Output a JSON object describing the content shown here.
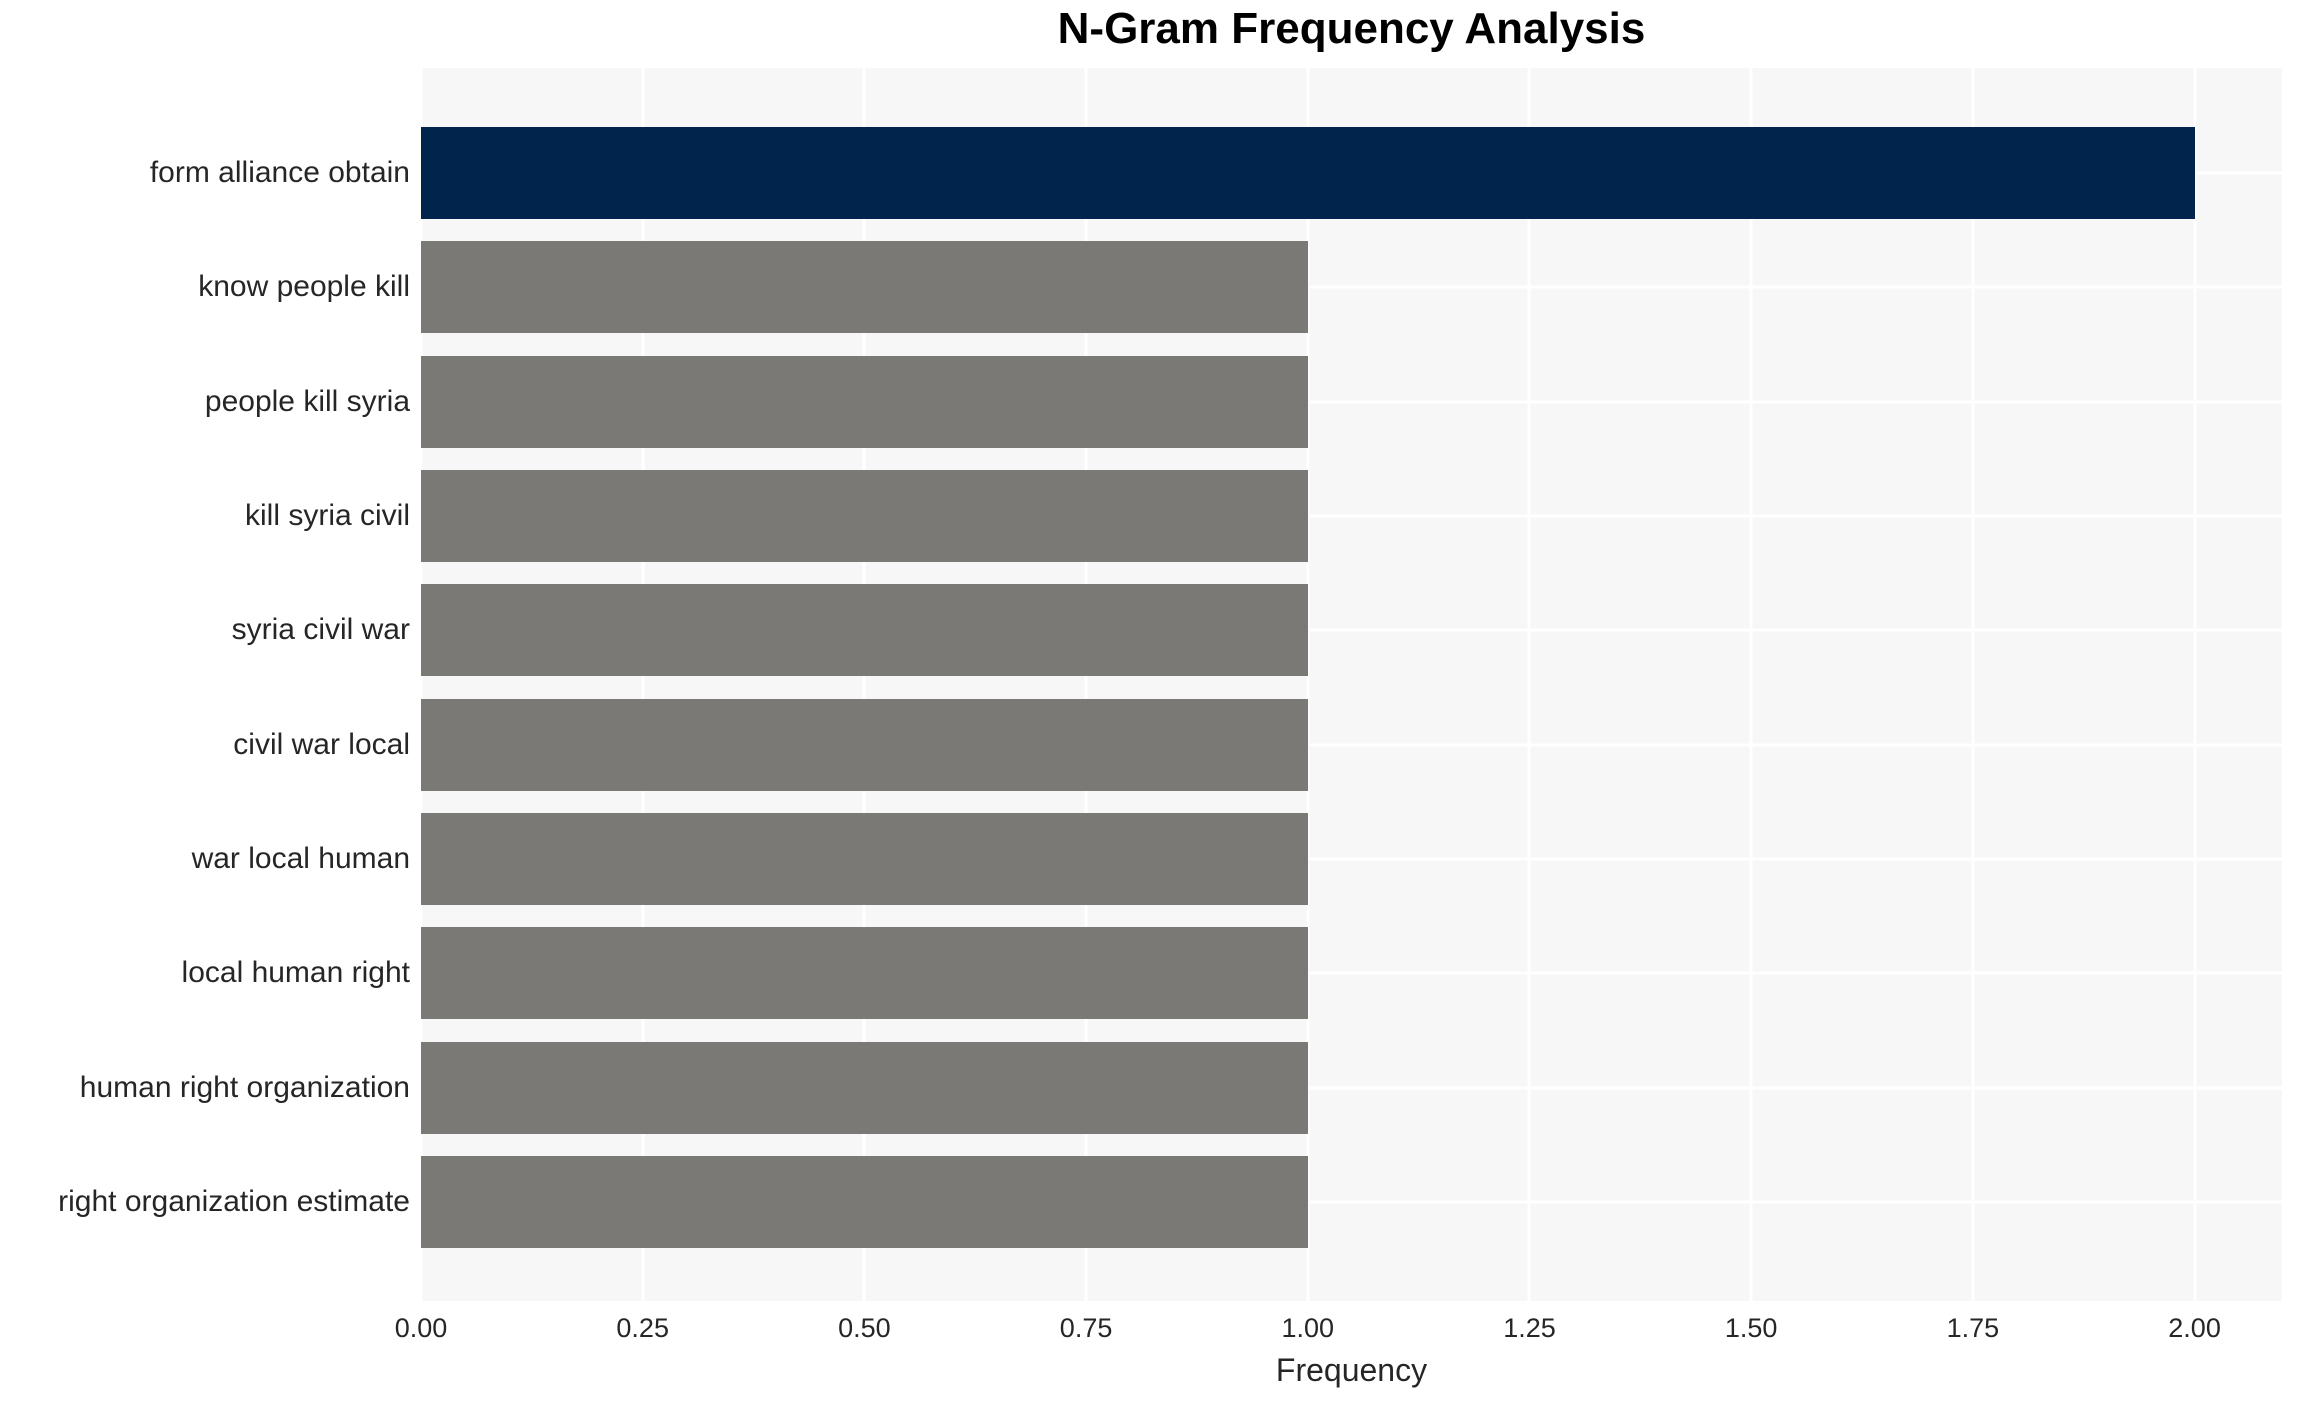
{
  "title": "N-Gram Frequency Analysis",
  "chart_data": {
    "type": "bar",
    "orientation": "horizontal",
    "title": "N-Gram Frequency Analysis",
    "xlabel": "Frequency",
    "ylabel": "",
    "categories": [
      "form alliance obtain",
      "know people kill",
      "people kill syria",
      "kill syria civil",
      "syria civil war",
      "civil war local",
      "war local human",
      "local human right",
      "human right organization",
      "right organization estimate"
    ],
    "values": [
      2,
      1,
      1,
      1,
      1,
      1,
      1,
      1,
      1,
      1
    ],
    "bar_colors": [
      "#01244d",
      "#7a7975",
      "#7a7975",
      "#7a7975",
      "#7a7975",
      "#7a7975",
      "#7a7975",
      "#7a7975",
      "#7a7975",
      "#7a7975"
    ],
    "xlim": [
      0,
      2.0986
    ],
    "x_ticks": [
      {
        "value": 0.0,
        "label": "0.00"
      },
      {
        "value": 0.25,
        "label": "0.25"
      },
      {
        "value": 0.5,
        "label": "0.50"
      },
      {
        "value": 0.75,
        "label": "0.75"
      },
      {
        "value": 1.0,
        "label": "1.00"
      },
      {
        "value": 1.25,
        "label": "1.25"
      },
      {
        "value": 1.5,
        "label": "1.50"
      },
      {
        "value": 1.75,
        "label": "1.75"
      },
      {
        "value": 2.0,
        "label": "2.00"
      }
    ],
    "grid": "white major gridlines (vertical at ticks, horizontal at category centers) on light panel",
    "legend_position": "none",
    "colors": {
      "highlight_bar": "#01244d",
      "default_bar": "#7a7975",
      "panel_background": "#f7f7f7",
      "gridline": "#ffffff",
      "tick_text": "#262626",
      "title_text": "#000000",
      "page_background": "#ffffff"
    }
  }
}
